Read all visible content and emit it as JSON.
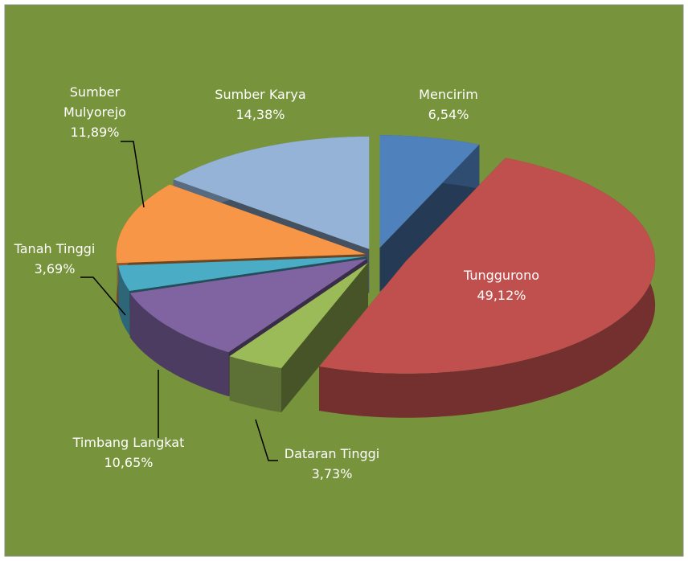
{
  "chart_data": {
    "type": "pie",
    "categories": [
      "Mencirim",
      "Tunggurono",
      "Dataran Tinggi",
      "Timbang Langkat",
      "Tanah Tinggi",
      "Sumber Mulyorejo",
      "Sumber Karya"
    ],
    "values": [
      6.54,
      49.12,
      3.73,
      10.65,
      3.69,
      11.89,
      14.38
    ],
    "value_labels": [
      "6,54%",
      "49,12%",
      "3,73%",
      "10,65%",
      "3,69%",
      "11,89%",
      "14,38%"
    ],
    "colors": [
      "#4f81bd",
      "#c0504d",
      "#9bbb59",
      "#8064a2",
      "#4bacc6",
      "#f79646",
      "#95b3d7"
    ]
  }
}
